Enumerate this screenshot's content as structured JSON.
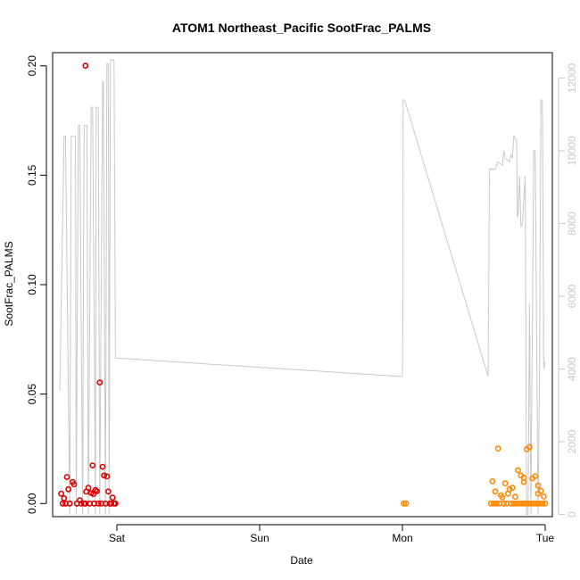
{
  "chart_data": {
    "type": "scatter",
    "title": "ATOM1 Northeast_Pacific SootFrac_PALMS",
    "xlabel": "Date",
    "ylabel": "SootFrac_PALMS",
    "x_axis": {
      "unit": "days since Saturday 00:00",
      "range": [
        -0.45,
        3.05
      ],
      "ticks": [
        {
          "value": 0,
          "label": "Sat"
        },
        {
          "value": 1,
          "label": "Sun"
        },
        {
          "value": 2,
          "label": "Mon"
        },
        {
          "value": 3,
          "label": "Tue"
        }
      ]
    },
    "y_left": {
      "range": [
        -0.006,
        0.206
      ],
      "ticks": [
        0.0,
        0.05,
        0.1,
        0.15,
        0.2
      ],
      "tick_labels": [
        "0.00",
        "0.05",
        "0.10",
        "0.15",
        "0.20"
      ]
    },
    "y_right": {
      "label": "",
      "color": "#c8c8c8",
      "range": [
        -60,
        12700
      ],
      "ticks": [
        0,
        2000,
        4000,
        6000,
        8000,
        10000,
        12000
      ],
      "tick_labels": [
        "0",
        "2000",
        "4000",
        "6000",
        "8000",
        "10000",
        "12000"
      ]
    },
    "series": [
      {
        "name": "",
        "axis": "right",
        "kind": "line",
        "color": "#c8c8c8",
        "x": [
          -0.4,
          -0.37,
          -0.36,
          -0.33,
          -0.32,
          -0.29,
          -0.285,
          -0.27,
          -0.26,
          -0.24,
          -0.23,
          -0.21,
          -0.2,
          -0.18,
          -0.17,
          -0.15,
          -0.145,
          -0.13,
          -0.12,
          -0.1,
          -0.095,
          -0.08,
          -0.07,
          -0.06,
          -0.055,
          -0.045,
          -0.035,
          -0.02,
          -0.01,
          0.0,
          1.97,
          2.0,
          2.003,
          2.005,
          2.01,
          2.015,
          2.6,
          2.61,
          2.64,
          2.65,
          2.66,
          2.67,
          2.7,
          2.71,
          2.72,
          2.75,
          2.76,
          2.77,
          2.78,
          2.785,
          2.79,
          2.8,
          2.805,
          2.81,
          2.82,
          2.83,
          2.84,
          2.86,
          2.87,
          2.88,
          2.89,
          2.9,
          2.92,
          2.93,
          2.95,
          2.96,
          2.97,
          2.98,
          2.99,
          3.0
        ],
        "y": [
          3400,
          10400,
          10400,
          0,
          10400,
          10400,
          0,
          10700,
          10700,
          0,
          10700,
          10700,
          0,
          11200,
          11200,
          0,
          11200,
          11200,
          0,
          11900,
          11900,
          0,
          12400,
          12400,
          0,
          12500,
          12500,
          12500,
          4300,
          4300,
          3800,
          3800,
          5500,
          11400,
          11400,
          11400,
          3800,
          9500,
          9500,
          9500,
          9600,
          9700,
          9600,
          10000,
          9800,
          9700,
          9900,
          9800,
          10400,
          10400,
          10300,
          10300,
          8200,
          8200,
          9300,
          7900,
          8000,
          9300,
          0,
          0,
          5800,
          0,
          10000,
          10000,
          0,
          3600,
          11400,
          11400,
          4000,
          4200
        ]
      },
      {
        "name": "",
        "axis": "left",
        "kind": "points",
        "color": "#dd0000",
        "x": [
          -0.39,
          -0.35,
          -0.34,
          -0.31,
          -0.3,
          -0.22,
          -0.2,
          -0.18,
          -0.17,
          -0.15,
          -0.14,
          -0.12,
          -0.1,
          -0.09,
          -0.06,
          -0.03,
          -0.38,
          -0.36,
          -0.33,
          -0.28,
          -0.25,
          -0.22,
          -0.19,
          -0.16,
          -0.13,
          -0.11,
          -0.08,
          -0.05,
          -0.02,
          -0.01,
          -0.37,
          -0.26,
          -0.23,
          -0.07,
          -0.04,
          -0.215,
          -0.165
        ],
        "y": [
          0.0045,
          0.0121,
          0.0065,
          0.0098,
          0.0087,
          0.2,
          0.0072,
          0.0048,
          0.0174,
          0.0062,
          0.0056,
          0.0553,
          0.0168,
          0.0128,
          0.0055,
          0.0027,
          0.0,
          0.0,
          0.0,
          0.0,
          0.0,
          0.0,
          0.0,
          0.0,
          0.0,
          0.0,
          0.0,
          0.0,
          0.0,
          0.0,
          0.0024,
          0.0015,
          0.0,
          0.0124,
          0.0,
          0.0054,
          0.0043
        ]
      },
      {
        "name": "",
        "axis": "left",
        "kind": "points",
        "color": "#ff8800",
        "x": [
          2.01,
          2.025,
          2.62,
          2.64,
          2.66,
          2.68,
          2.71,
          2.73,
          2.76,
          2.78,
          2.8,
          2.82,
          2.84,
          2.86,
          2.88,
          2.9,
          2.92,
          2.94,
          2.96,
          2.98,
          3.0,
          2.63,
          2.65,
          2.67,
          2.69,
          2.72,
          2.74,
          2.77,
          2.79,
          2.81,
          2.83,
          2.85,
          2.87,
          2.89,
          2.91,
          2.93,
          2.95,
          2.97,
          2.99,
          2.7,
          2.75,
          2.85,
          2.95
        ],
        "y": [
          0.0,
          0.0,
          0.0,
          0.0,
          0.0,
          0.0,
          0.0,
          0.0,
          0.0,
          0.0,
          0.0,
          0.0,
          0.0,
          0.0,
          0.0,
          0.0,
          0.0,
          0.0,
          0.0,
          0.0,
          0.0,
          0.0102,
          0.0055,
          0.0251,
          0.0038,
          0.0092,
          0.0045,
          0.0072,
          0.0031,
          0.0152,
          0.0128,
          0.0118,
          0.0248,
          0.0258,
          0.0115,
          0.0125,
          0.0082,
          0.0058,
          0.0032,
          0.0028,
          0.0065,
          0.0098,
          0.0045
        ]
      }
    ]
  }
}
